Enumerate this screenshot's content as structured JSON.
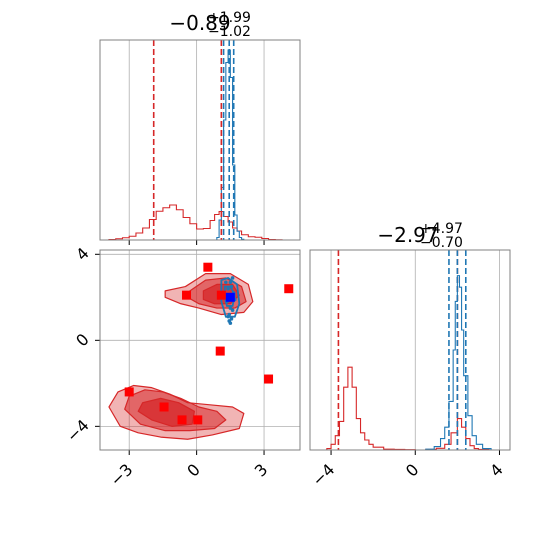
{
  "colors": {
    "red": "#d62728",
    "red_fill": "#e88a8c",
    "blue": "#1f77b4",
    "marker_red": "#ff0000",
    "marker_blue": "#0000ff",
    "grid": "#b0b0b0",
    "frame": "#808080"
  },
  "chart_data": [
    {
      "panel": "top-left-1d",
      "type": "line",
      "title": {
        "value": "−0.89",
        "upper": "+1.99",
        "lower": "−1.02"
      },
      "xlim": [
        -4.3,
        4.6
      ],
      "xticks": [
        -3,
        0,
        3
      ],
      "grid": true,
      "series": [
        {
          "color": "red",
          "style": "step",
          "x": [
            -4.2,
            -3.9,
            -3.6,
            -3.3,
            -3.0,
            -2.7,
            -2.4,
            -2.1,
            -1.8,
            -1.5,
            -1.2,
            -0.9,
            -0.6,
            -0.3,
            0.0,
            0.3,
            0.6,
            0.8,
            1.0,
            1.2,
            1.4,
            1.6,
            1.8,
            2.0,
            2.3,
            2.6,
            2.9,
            3.2,
            3.5,
            3.8,
            4.1,
            4.4
          ],
          "y": [
            0.0,
            0.2,
            0.5,
            0.9,
            1.5,
            2.8,
            4.8,
            8.2,
            11.5,
            12.9,
            14.0,
            12.1,
            9.0,
            6.5,
            4.4,
            4.6,
            7.8,
            10.2,
            11.4,
            9.4,
            7.2,
            4.8,
            3.6,
            2.1,
            1.3,
            1.1,
            0.6,
            0.2,
            0.1,
            0.0,
            0.0,
            0.0
          ]
        },
        {
          "color": "blue",
          "style": "step",
          "x": [
            0.8,
            0.9,
            1.0,
            1.1,
            1.2,
            1.3,
            1.4,
            1.5,
            1.6,
            1.7,
            1.8,
            1.9,
            2.0,
            2.1
          ],
          "y": [
            0.0,
            1.0,
            8.0,
            21.0,
            48.0,
            71.0,
            76.0,
            65.0,
            30.0,
            10.0,
            3.5,
            1.0,
            0.3,
            0.0
          ]
        }
      ],
      "vlines": [
        {
          "x": -1.91,
          "color": "red"
        },
        {
          "x": 1.1,
          "color": "red"
        },
        {
          "x": 1.2,
          "color": "blue"
        },
        {
          "x": 1.45,
          "color": "blue"
        },
        {
          "x": 1.65,
          "color": "blue"
        }
      ],
      "ylim": [
        0,
        80
      ]
    },
    {
      "panel": "bottom-left-2d",
      "type": "scatter",
      "xlim": [
        -4.3,
        4.6
      ],
      "ylim": [
        -5.1,
        4.2
      ],
      "xticks": [
        -3,
        0,
        3
      ],
      "yticks": [
        -4,
        0,
        4
      ],
      "grid": true,
      "red_contours": [
        {
          "level": "outer",
          "x": [
            -3.5,
            -2.8,
            -2.0,
            -1.2,
            -0.4,
            0.6,
            1.6,
            2.1,
            1.9,
            0.7,
            -0.4,
            -1.6,
            -2.6,
            -3.4,
            -3.9
          ],
          "y": [
            -2.4,
            -2.1,
            -2.2,
            -2.5,
            -2.9,
            -3.0,
            -3.1,
            -3.4,
            -4.1,
            -4.4,
            -4.6,
            -4.5,
            -4.3,
            -4.0,
            -3.1
          ]
        },
        {
          "level": "middle",
          "x": [
            -3.0,
            -2.3,
            -1.5,
            -0.7,
            0.1,
            0.9,
            1.3,
            0.8,
            -0.3,
            -1.4,
            -2.5,
            -3.2
          ],
          "y": [
            -2.6,
            -2.3,
            -2.4,
            -2.7,
            -3.1,
            -3.3,
            -3.7,
            -4.1,
            -4.2,
            -4.2,
            -3.9,
            -3.2
          ]
        },
        {
          "level": "inner",
          "x": [
            -2.4,
            -1.6,
            -0.8,
            -0.1,
            -0.2,
            -1.1,
            -2.0,
            -2.6
          ],
          "y": [
            -2.9,
            -2.7,
            -2.9,
            -3.3,
            -3.9,
            -4.0,
            -3.7,
            -3.3
          ]
        },
        {
          "level": "outer",
          "x": [
            -1.4,
            -0.5,
            0.4,
            1.5,
            2.3,
            2.5,
            2.1,
            1.1,
            0.1,
            -0.7,
            -1.4
          ],
          "y": [
            2.3,
            2.5,
            3.1,
            3.1,
            2.6,
            1.8,
            1.3,
            1.2,
            1.5,
            1.7,
            2.0
          ]
        },
        {
          "level": "middle",
          "x": [
            -0.3,
            0.4,
            1.3,
            2.0,
            2.2,
            1.7,
            0.9,
            0.1,
            -0.4
          ],
          "y": [
            2.3,
            2.8,
            2.9,
            2.5,
            1.8,
            1.5,
            1.5,
            1.7,
            2.0
          ]
        },
        {
          "level": "inner",
          "x": [
            0.3,
            0.9,
            1.6,
            1.9,
            1.5,
            0.8,
            0.3
          ],
          "y": [
            2.3,
            2.6,
            2.6,
            2.1,
            1.7,
            1.7,
            1.9
          ]
        }
      ],
      "blue_contours": [
        {
          "x": [
            1.1,
            1.4,
            1.8,
            1.9,
            1.7,
            1.3,
            1.1
          ],
          "y": [
            2.8,
            2.9,
            2.6,
            1.7,
            1.1,
            1.1,
            1.8
          ]
        },
        {
          "x": [
            1.25,
            1.5,
            1.7,
            1.6,
            1.35,
            1.25
          ],
          "y": [
            2.5,
            2.5,
            2.1,
            1.6,
            1.6,
            2.0
          ]
        }
      ],
      "blue_points": {
        "x": [
          1.5,
          1.45,
          1.6,
          1.4,
          1.55,
          1.65,
          1.35,
          1.5,
          1.7,
          1.3,
          1.6,
          1.45,
          1.5,
          1.4,
          1.55
        ],
        "y": [
          2.7,
          1.2,
          1.4,
          2.4,
          1.0,
          2.2,
          1.8,
          0.8,
          1.9,
          2.7,
          2.9,
          0.9,
          1.5,
          1.1,
          2.5
        ]
      },
      "red_markers": {
        "x": [
          0.5,
          -0.45,
          1.1,
          4.1,
          1.05,
          3.2,
          -3.0,
          -1.45,
          -0.65,
          0.05
        ],
        "y": [
          3.4,
          2.1,
          2.1,
          2.4,
          -0.5,
          -1.8,
          -2.4,
          -3.1,
          -3.7,
          -3.7
        ]
      },
      "blue_markers": {
        "x": [
          1.5
        ],
        "y": [
          2.0
        ]
      }
    },
    {
      "panel": "bottom-right-1d",
      "type": "line",
      "title": {
        "value": "−2.97",
        "upper": "+4.97",
        "lower": "−0.70"
      },
      "xlim": [
        -5.0,
        4.5
      ],
      "xticks": [
        -4,
        0,
        4
      ],
      "grid": true,
      "series": [
        {
          "color": "red",
          "style": "step",
          "x": [
            -5.0,
            -4.5,
            -4.2,
            -4.0,
            -3.8,
            -3.6,
            -3.4,
            -3.2,
            -3.0,
            -2.8,
            -2.6,
            -2.4,
            -2.2,
            -2.0,
            -1.5,
            -1.0,
            -0.5,
            0.0,
            0.5,
            1.0,
            1.4,
            1.7,
            2.0,
            2.2,
            2.4,
            2.6,
            2.8,
            3.0,
            3.5,
            4.0
          ],
          "y": [
            0.0,
            0.0,
            0.5,
            2.0,
            5.0,
            10.0,
            22.0,
            29.0,
            22.0,
            11.0,
            6.0,
            3.5,
            2.0,
            1.0,
            0.3,
            0.2,
            0.1,
            0.0,
            0.2,
            0.6,
            2.0,
            6.0,
            11.0,
            8.0,
            4.0,
            1.5,
            0.5,
            0.2,
            0.0,
            0.0
          ]
        },
        {
          "color": "blue",
          "style": "step",
          "x": [
            0.0,
            0.5,
            0.9,
            1.2,
            1.4,
            1.6,
            1.8,
            1.9,
            2.0,
            2.1,
            2.2,
            2.3,
            2.5,
            2.7,
            2.9,
            3.2,
            3.6
          ],
          "y": [
            0.0,
            0.3,
            1.2,
            4.0,
            8.0,
            17.0,
            35.0,
            52.0,
            61.0,
            57.0,
            42.0,
            26.0,
            12.0,
            5.0,
            2.0,
            0.5,
            0.0
          ]
        }
      ],
      "vlines": [
        {
          "x": -3.65,
          "color": "red"
        },
        {
          "x": 2.0,
          "color": "red"
        },
        {
          "x": 1.6,
          "color": "blue"
        },
        {
          "x": 2.0,
          "color": "blue"
        },
        {
          "x": 2.4,
          "color": "blue"
        }
      ],
      "ylim": [
        0,
        70
      ]
    }
  ]
}
